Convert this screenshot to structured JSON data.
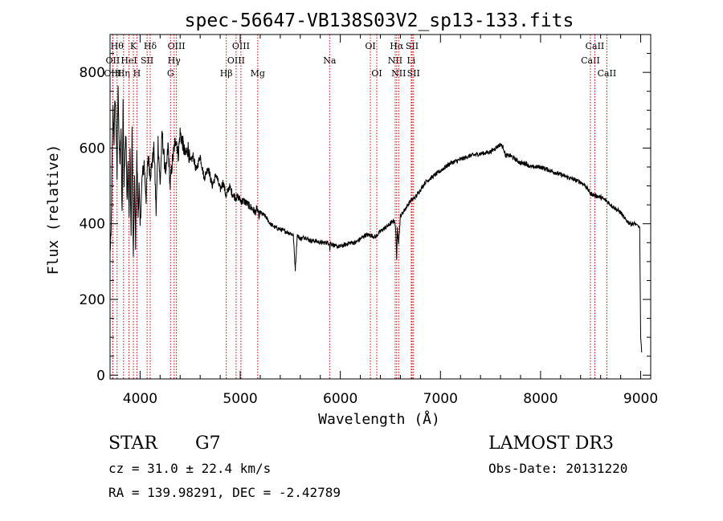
{
  "chart_data": {
    "type": "line",
    "title": "spec-56647-VB138S03V2_sp13-133.fits",
    "xlabel": "Wavelength (Å)",
    "ylabel": "Flux (relative)",
    "xlim": [
      3700,
      9100
    ],
    "ylim": [
      -10,
      900
    ],
    "x_ticks": [
      4000,
      5000,
      6000,
      7000,
      8000,
      9000
    ],
    "y_ticks": [
      0,
      200,
      400,
      600,
      800
    ],
    "grid": false,
    "line_color": "#000000",
    "marker_color": "#cc0000",
    "series": [
      {
        "x": [
          3700,
          3710,
          3720,
          3730,
          3740,
          3750,
          3760,
          3770,
          3780,
          3790,
          3800,
          3810,
          3820,
          3830,
          3840,
          3850,
          3860,
          3870,
          3880,
          3890,
          3900,
          3910,
          3920,
          3933,
          3945,
          3955,
          3968,
          3980,
          3990,
          4000,
          4020,
          4040,
          4060,
          4080,
          4101,
          4120,
          4140,
          4160,
          4180,
          4200,
          4220,
          4240,
          4260,
          4280,
          4300,
          4320,
          4340,
          4360,
          4380,
          4400,
          4420,
          4450,
          4480,
          4500,
          4530,
          4560,
          4600,
          4640,
          4680,
          4720,
          4760,
          4800,
          4830,
          4861,
          4890,
          4920,
          4950,
          4980,
          5010,
          5040,
          5080,
          5120,
          5150,
          5170,
          5184,
          5200,
          5250,
          5300,
          5350,
          5400,
          5450,
          5500,
          5530,
          5550,
          5570,
          5600,
          5650,
          5700,
          5750,
          5800,
          5850,
          5890,
          5895,
          5900,
          5950,
          6000,
          6050,
          6100,
          6150,
          6200,
          6250,
          6300,
          6350,
          6400,
          6450,
          6500,
          6540,
          6555,
          6563,
          6570,
          6583,
          6600,
          6650,
          6700,
          6750,
          6800,
          6850,
          6900,
          6950,
          7000,
          7100,
          7200,
          7300,
          7400,
          7500,
          7550,
          7600,
          7630,
          7650,
          7700,
          7750,
          7800,
          7850,
          7900,
          8000,
          8100,
          8200,
          8300,
          8400,
          8450,
          8498,
          8542,
          8600,
          8662,
          8700,
          8750,
          8800,
          8850,
          8900,
          8950,
          8970,
          8990,
          9000,
          9010
        ],
        "y": [
          330,
          360,
          560,
          700,
          620,
          740,
          660,
          520,
          780,
          610,
          560,
          650,
          430,
          720,
          500,
          610,
          640,
          450,
          560,
          420,
          600,
          350,
          650,
          300,
          520,
          350,
          580,
          420,
          500,
          390,
          520,
          560,
          470,
          580,
          530,
          560,
          600,
          430,
          620,
          500,
          640,
          570,
          530,
          610,
          500,
          560,
          600,
          630,
          580,
          640,
          620,
          580,
          600,
          560,
          580,
          540,
          580,
          520,
          550,
          500,
          530,
          490,
          510,
          470,
          500,
          480,
          470,
          470,
          460,
          460,
          450,
          440,
          430,
          440,
          420,
          430,
          420,
          400,
          390,
          385,
          380,
          375,
          370,
          280,
          370,
          360,
          365,
          355,
          355,
          350,
          350,
          350,
          330,
          350,
          340,
          340,
          345,
          350,
          350,
          360,
          370,
          370,
          365,
          380,
          390,
          400,
          410,
          380,
          300,
          390,
          350,
          420,
          440,
          460,
          470,
          490,
          510,
          520,
          530,
          540,
          560,
          570,
          580,
          585,
          590,
          600,
          610,
          600,
          580,
          580,
          570,
          560,
          560,
          550,
          550,
          540,
          530,
          520,
          510,
          500,
          480,
          475,
          470,
          460,
          450,
          440,
          430,
          410,
          400,
          400,
          395,
          390,
          100,
          60
        ]
      }
    ],
    "line_markers": [
      {
        "x": 3770,
        "label": "Hθ",
        "row": 0
      },
      {
        "x": 3727,
        "label": "OII",
        "row": 1
      },
      {
        "x": 3727,
        "label": "OIII",
        "row": 2
      },
      {
        "x": 3835,
        "label": "Hη",
        "row": 2
      },
      {
        "x": 3889,
        "label": "HeI",
        "row": 1
      },
      {
        "x": 3933,
        "label": "K",
        "row": 0
      },
      {
        "x": 3968,
        "label": "H",
        "row": 2
      },
      {
        "x": 4070,
        "label": "SII",
        "row": 1
      },
      {
        "x": 4101,
        "label": "Hδ",
        "row": 0
      },
      {
        "x": 4304,
        "label": "G",
        "row": 2
      },
      {
        "x": 4340,
        "label": "Hγ",
        "row": 1
      },
      {
        "x": 4363,
        "label": "OIII",
        "row": 0
      },
      {
        "x": 4861,
        "label": "Hβ",
        "row": 2
      },
      {
        "x": 4959,
        "label": "OIII",
        "row": 1
      },
      {
        "x": 5007,
        "label": "OIII",
        "row": 0
      },
      {
        "x": 5175,
        "label": "Mg",
        "row": 2
      },
      {
        "x": 5893,
        "label": "Na",
        "row": 1
      },
      {
        "x": 6300,
        "label": "OI",
        "row": 0
      },
      {
        "x": 6364,
        "label": "OI",
        "row": 2
      },
      {
        "x": 6548,
        "label": "NII",
        "row": 1
      },
      {
        "x": 6563,
        "label": "Hα",
        "row": 0
      },
      {
        "x": 6583,
        "label": "NII",
        "row": 2
      },
      {
        "x": 6708,
        "label": "Li",
        "row": 1
      },
      {
        "x": 6717,
        "label": "SII",
        "row": 0
      },
      {
        "x": 6731,
        "label": "SII",
        "row": 2
      },
      {
        "x": 8498,
        "label": "CaII",
        "row": 1
      },
      {
        "x": 8542,
        "label": "CaII",
        "row": 0
      },
      {
        "x": 8662,
        "label": "CaII",
        "row": 2
      }
    ]
  },
  "info": {
    "object_class": "STAR",
    "subclass": "G7",
    "survey": "LAMOST DR3",
    "redshift": "cz = 31.0 ± 22.4 km/s",
    "obs_date": "Obs-Date: 20131220",
    "coords": "RA = 139.98291, DEC =  -2.42789"
  }
}
